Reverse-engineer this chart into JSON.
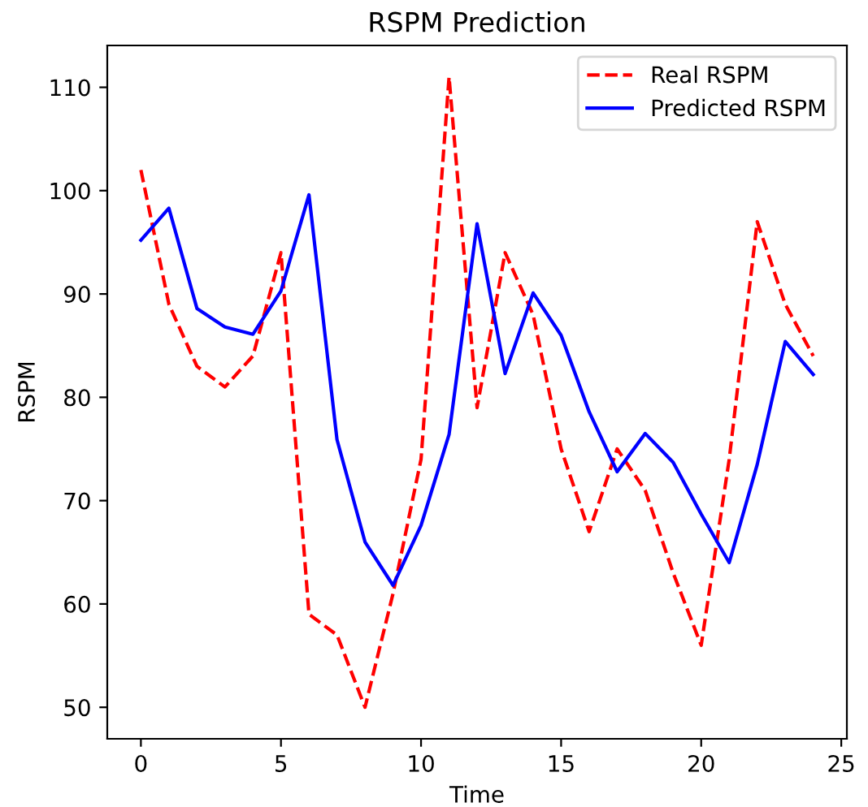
{
  "chart_data": {
    "type": "line",
    "title": "RSPM Prediction",
    "xlabel": "Time",
    "ylabel": "RSPM",
    "x": [
      0,
      1,
      2,
      3,
      4,
      5,
      6,
      7,
      8,
      9,
      10,
      11,
      12,
      13,
      14,
      15,
      16,
      17,
      18,
      19,
      20,
      21,
      22,
      23,
      24
    ],
    "series": [
      {
        "name": "Real RSPM",
        "color": "#ff0000",
        "line_style": "dashed",
        "values": [
          102,
          89,
          83,
          81,
          84,
          94,
          59,
          57,
          50,
          61,
          74,
          111,
          79,
          94,
          88,
          75,
          67,
          75,
          71,
          63,
          56,
          74,
          97,
          89,
          84
        ]
      },
      {
        "name": "Predicted RSPM",
        "color": "#0000ff",
        "line_style": "solid",
        "values": [
          95.2,
          98.3,
          88.6,
          86.8,
          86.1,
          90.3,
          99.6,
          75.9,
          66,
          61.8,
          67.6,
          76.4,
          96.8,
          82.3,
          90.1,
          86,
          78.6,
          72.8,
          76.5,
          73.7,
          68.7,
          64,
          73.5,
          85.4,
          82.2
        ]
      }
    ],
    "xlim": [
      -1.2,
      25.2
    ],
    "ylim": [
      46.95,
      114.05
    ],
    "xticks": [
      0,
      5,
      10,
      15,
      20,
      25
    ],
    "yticks": [
      50,
      60,
      70,
      80,
      90,
      100,
      110
    ],
    "grid": false,
    "legend": "top right",
    "marker": "none"
  }
}
